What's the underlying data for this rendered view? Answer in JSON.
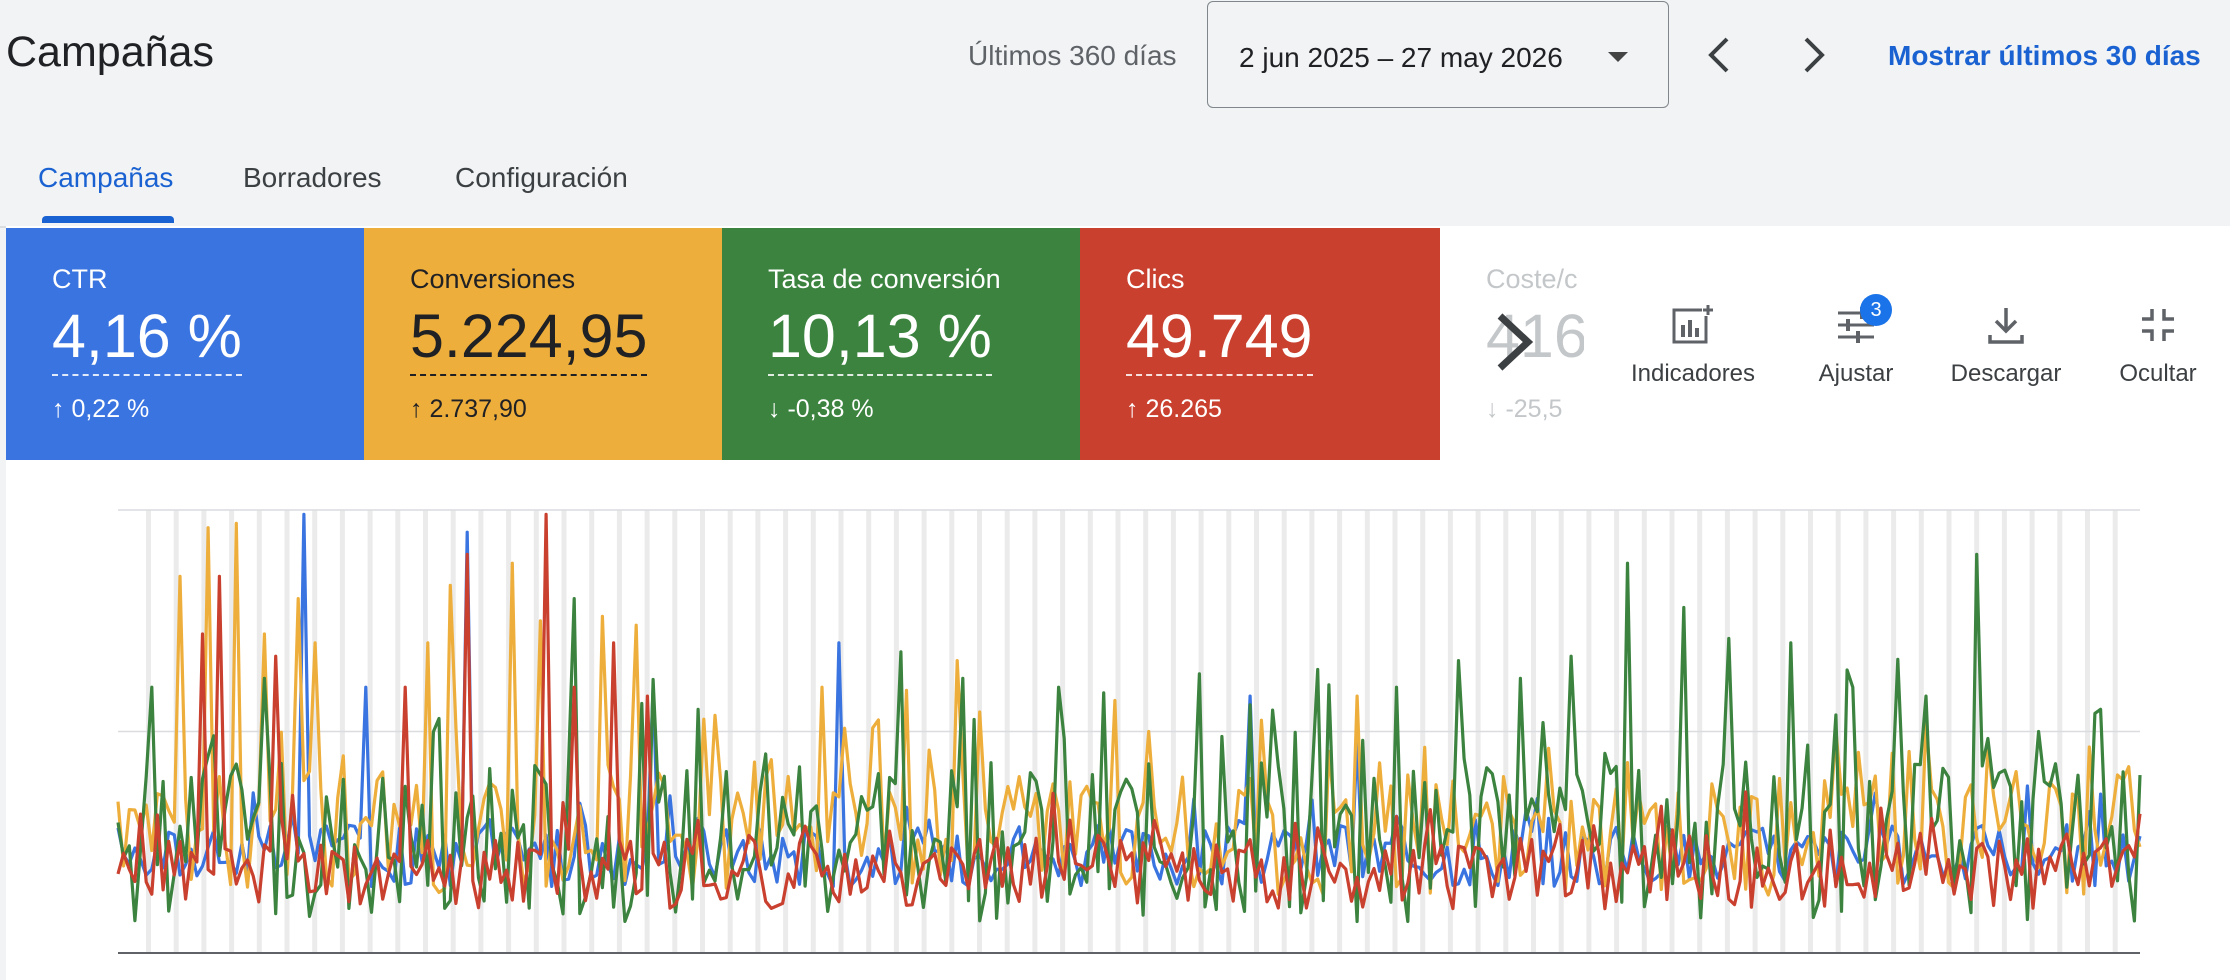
{
  "header": {
    "title": "Campañas",
    "range_label": "Últimos 360 días",
    "date_range": "2 jun 2025 – 27 may 2026",
    "show_last_30": "Mostrar últimos 30 días"
  },
  "tabs": [
    {
      "label": "Campañas",
      "active": true
    },
    {
      "label": "Borradores",
      "active": false
    },
    {
      "label": "Configuración",
      "active": false
    }
  ],
  "kpis": [
    {
      "label": "CTR",
      "value": "4,16 %",
      "delta": "0,22 %",
      "direction": "up",
      "color": "#3a74e0"
    },
    {
      "label": "Conversiones",
      "value": "5.224,95",
      "delta": "2.737,90",
      "direction": "up",
      "color": "#eeae3c"
    },
    {
      "label": "Tasa de conversión",
      "value": "10,13 %",
      "delta": "-0,38 %",
      "direction": "down",
      "color": "#3b833f"
    },
    {
      "label": "Clics",
      "value": "49.749",
      "delta": "26.265",
      "direction": "up",
      "color": "#c9402f"
    },
    {
      "label": "Coste/c",
      "value": "416",
      "delta": "-25,5",
      "direction": "down",
      "color": "#ffffff"
    }
  ],
  "toolbar": {
    "indicators": "Indicadores",
    "adjust": "Ajustar",
    "adjust_badge": "3",
    "download": "Descargar",
    "hide": "Ocultar"
  },
  "chart_data": {
    "type": "line",
    "ylim": [
      0,
      1
    ],
    "grid": true,
    "x_points": 360,
    "series": [
      {
        "color": "#3a74e0",
        "base": 0.22,
        "noise": 0.07,
        "spikes": [
          [
            45,
            0.99
          ],
          [
            60,
            0.6
          ],
          [
            85,
            0.95
          ],
          [
            130,
            0.6
          ],
          [
            175,
            0.7
          ],
          [
            275,
            0.58
          ],
          [
            300,
            0.48
          ]
        ]
      },
      {
        "color": "#eeae3c",
        "base": 0.27,
        "noise": 0.14,
        "spikes": [
          [
            15,
            0.85
          ],
          [
            22,
            0.96
          ],
          [
            28,
            0.97
          ],
          [
            36,
            0.72
          ],
          [
            43,
            0.8
          ],
          [
            48,
            0.7
          ],
          [
            75,
            0.7
          ],
          [
            80,
            0.83
          ],
          [
            96,
            0.88
          ],
          [
            102,
            0.75
          ],
          [
            118,
            0.76
          ],
          [
            125,
            0.74
          ],
          [
            170,
            0.6
          ],
          [
            203,
            0.66
          ],
          [
            242,
            0.57
          ],
          [
            250,
            0.5
          ],
          [
            300,
            0.58
          ]
        ]
      },
      {
        "color": "#3b833f",
        "base": 0.25,
        "noise": 0.18,
        "spikes": [
          [
            8,
            0.6
          ],
          [
            35,
            0.62
          ],
          [
            110,
            0.8
          ],
          [
            140,
            0.55
          ],
          [
            165,
            0.42
          ],
          [
            190,
            0.68
          ],
          [
            205,
            0.62
          ],
          [
            228,
            0.6
          ],
          [
            262,
            0.63
          ],
          [
            275,
            0.56
          ],
          [
            291,
            0.64
          ],
          [
            302,
            0.48
          ],
          [
            310,
            0.6
          ],
          [
            325,
            0.66
          ],
          [
            340,
            0.62
          ],
          [
            345,
            0.52
          ],
          [
            352,
            0.67
          ],
          [
            366,
            0.88
          ],
          [
            380,
            0.78
          ],
          [
            391,
            0.71
          ],
          [
            405,
            0.7
          ],
          [
            420,
            0.6
          ],
          [
            438,
            0.58
          ],
          [
            450,
            0.9
          ],
          [
            465,
            0.5
          ],
          [
            480,
            0.55
          ]
        ]
      },
      {
        "color": "#c9402f",
        "base": 0.18,
        "noise": 0.08,
        "spikes": [
          [
            20,
            0.72
          ],
          [
            25,
            0.85
          ],
          [
            38,
            0.67
          ],
          [
            70,
            0.6
          ],
          [
            85,
            0.9
          ],
          [
            104,
            0.99
          ],
          [
            110,
            0.6
          ],
          [
            120,
            0.7
          ],
          [
            128,
            0.58
          ],
          [
            230,
            0.3
          ],
          [
            370,
            0.24
          ]
        ]
      }
    ]
  }
}
